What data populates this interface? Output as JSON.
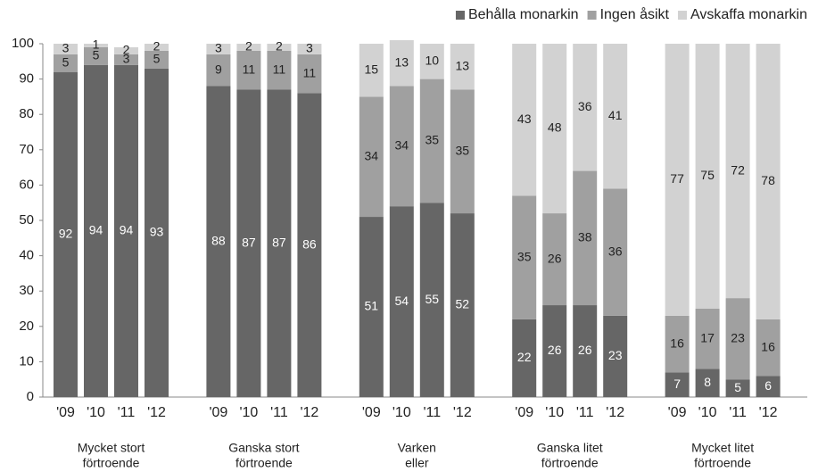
{
  "chart_data": {
    "type": "stacked-bar",
    "categories": [
      "'09",
      "'10",
      "'11",
      "'12",
      "'09",
      "'10",
      "'11",
      "'12",
      "'09",
      "'10",
      "'11",
      "'12",
      "'09",
      "'10",
      "'11",
      "'12",
      "'09",
      "'10",
      "'11",
      "'12"
    ],
    "groups": [
      [
        "Mycket stort",
        "förtroende"
      ],
      [
        "Ganska stort",
        "förtroende"
      ],
      [
        "Varken",
        "eller"
      ],
      [
        "Ganska litet",
        "förtroende"
      ],
      [
        "Mycket litet",
        "förtroende"
      ]
    ],
    "series": [
      {
        "name": "Behålla monarkin",
        "color": "#666666",
        "values": [
          92,
          94,
          94,
          93,
          88,
          87,
          87,
          86,
          51,
          54,
          55,
          52,
          22,
          26,
          26,
          23,
          7,
          8,
          5,
          6
        ]
      },
      {
        "name": "Ingen åsikt",
        "color": "#a0a0a0",
        "values": [
          5,
          5,
          3,
          5,
          9,
          11,
          11,
          11,
          34,
          34,
          35,
          35,
          35,
          26,
          38,
          36,
          16,
          17,
          23,
          16
        ]
      },
      {
        "name": "Avskaffa monarkin",
        "color": "#d2d2d2",
        "values": [
          3,
          1,
          2,
          2,
          3,
          2,
          2,
          3,
          15,
          13,
          10,
          13,
          43,
          48,
          36,
          41,
          77,
          75,
          72,
          78
        ]
      }
    ],
    "ylim": [
      0,
      100
    ],
    "yticks": [
      0,
      10,
      20,
      30,
      40,
      50,
      60,
      70,
      80,
      90,
      100
    ],
    "legend": "top-right"
  }
}
